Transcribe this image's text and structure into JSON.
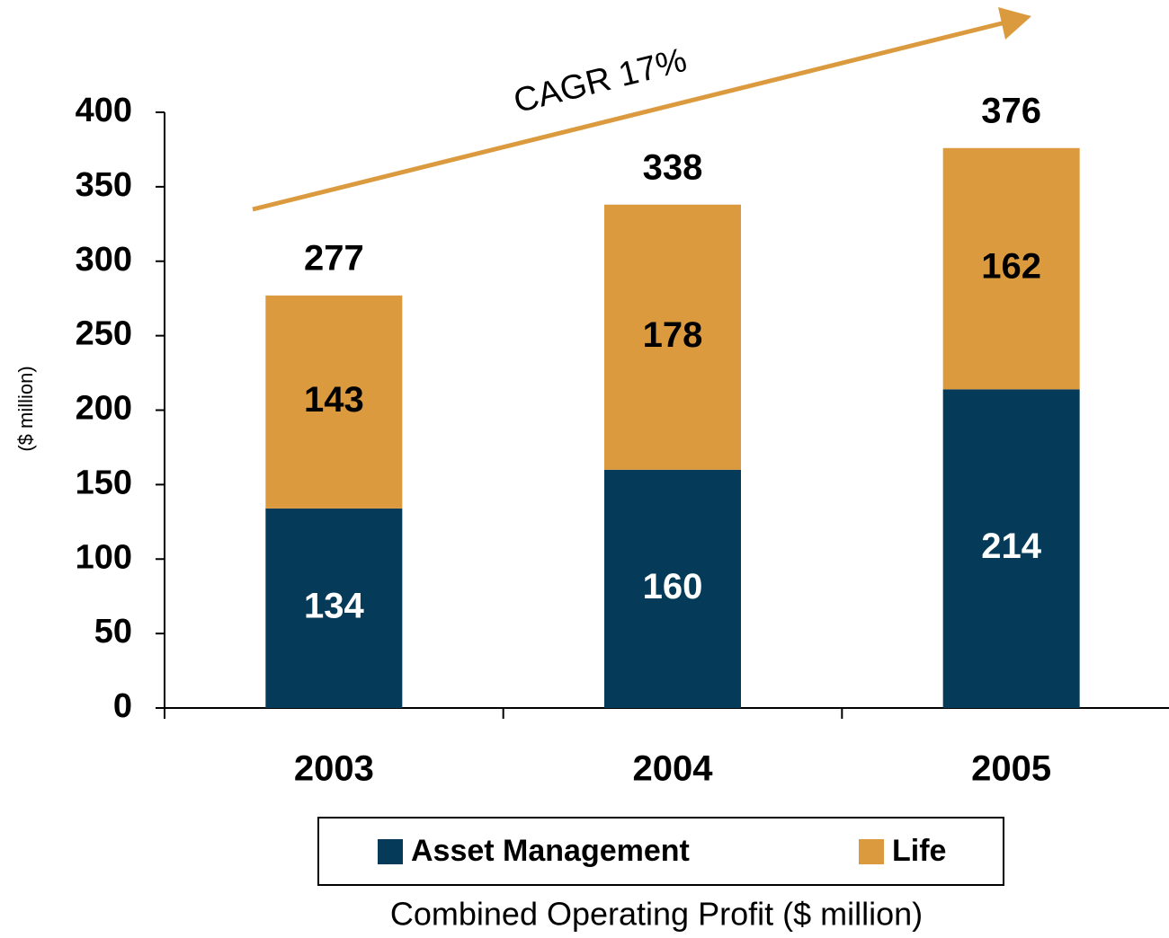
{
  "chart_data": {
    "type": "stacked_bar",
    "title": "Combined Operating Profit ($ million)",
    "y_label": "($ million)",
    "annotation": "CAGR 17%",
    "categories": [
      "2003",
      "2004",
      "2005"
    ],
    "series": [
      {
        "name": "Asset Management",
        "color": "#053b58",
        "values": [
          134,
          160,
          214
        ]
      },
      {
        "name": "Life",
        "color": "#dc9a3e",
        "values": [
          143,
          178,
          162
        ]
      }
    ],
    "totals": [
      277,
      338,
      376
    ],
    "ylim": [
      0,
      400
    ],
    "yticks": [
      0,
      50,
      100,
      150,
      200,
      250,
      300,
      350,
      400
    ],
    "legend": "bottom",
    "grid": false
  }
}
